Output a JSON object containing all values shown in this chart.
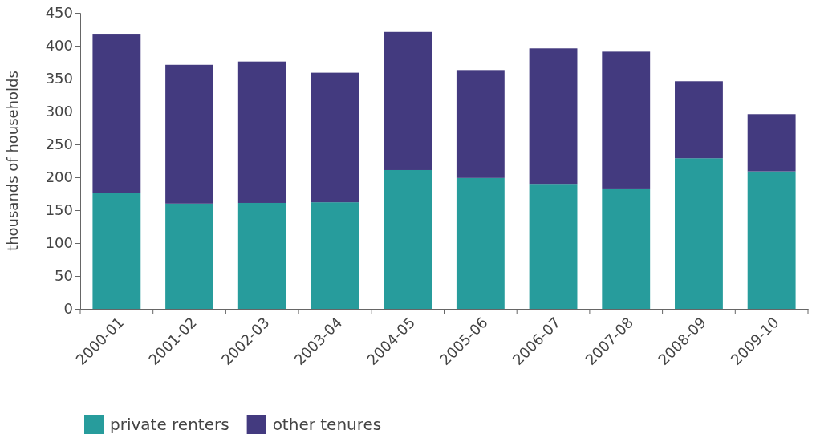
{
  "chart_data": {
    "type": "bar",
    "stacked": true,
    "ylabel": "thousands of households",
    "categories": [
      "2000-01",
      "2001-02",
      "2002-03",
      "2003-04",
      "2004-05",
      "2005-06",
      "2006-07",
      "2007-08",
      "2008-09",
      "2009-10"
    ],
    "series": [
      {
        "name": "private renters",
        "color": "#279c9c",
        "values": [
          176,
          160,
          161,
          162,
          211,
          199,
          190,
          183,
          229,
          209
        ]
      },
      {
        "name": "other tenures",
        "color": "#433a7f",
        "values": [
          241,
          211,
          215,
          197,
          210,
          164,
          206,
          208,
          117,
          87
        ]
      }
    ],
    "ylim": [
      0,
      450
    ],
    "yticks": [
      0,
      50,
      100,
      150,
      200,
      250,
      300,
      350,
      400,
      450
    ],
    "grid": false,
    "legend": "bottom left"
  }
}
